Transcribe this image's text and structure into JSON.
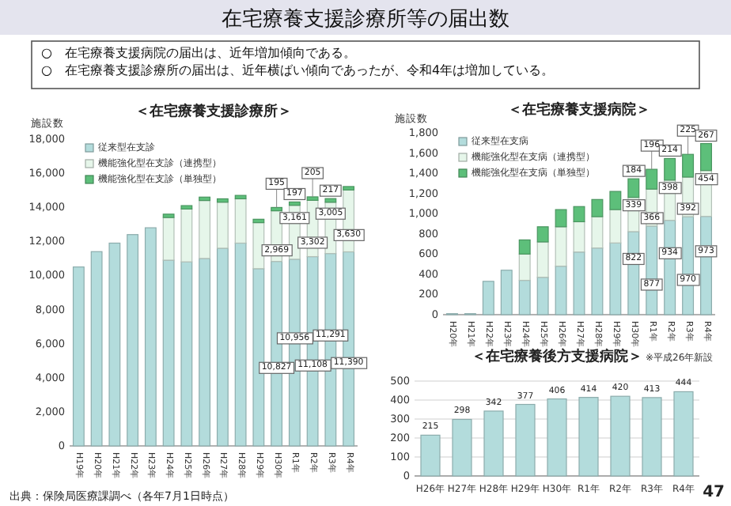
{
  "chart_data": [
    {
      "type": "other",
      "title": "在宅療養支援診療所等の届出数",
      "annotations": [
        "○　在宅療養支援病院の届出は、近年増加傾向である。",
        "○　在宅療養支援診療所の届出は、近年横ばい傾向であったが、令和4年は増加している。"
      ]
    },
    {
      "type": "bar",
      "title": "＜在宅療養支援診療所＞",
      "ylabel": "施設数",
      "stacked": true,
      "legend": "top left",
      "annotations": [
        "出典：保険局医療課調べ（各年7月1日時点）"
      ],
      "categories": [
        "H19年",
        "H20年",
        "H21年",
        "H22年",
        "H23年",
        "H24年",
        "H25年",
        "H26年",
        "H27年",
        "H28年",
        "H29年",
        "H30年",
        "R1年",
        "R2年",
        "R3年",
        "R4年"
      ],
      "ylim": [
        0,
        18000
      ],
      "yticks": [
        0,
        {
          "value": 2000,
          "label": "2,000"
        },
        {
          "value": 4000,
          "label": "4,000"
        },
        {
          "value": 6000,
          "label": "6,000"
        },
        {
          "value": 8000,
          "label": "8,000"
        },
        {
          "value": 10000,
          "label": "10,000"
        },
        {
          "value": 12000,
          "label": "12,000"
        },
        {
          "value": 14000,
          "label": "14,000"
        },
        {
          "value": 16000,
          "label": "16,000"
        },
        {
          "value": 18000,
          "label": "18,000"
        }
      ],
      "series": [
        {
          "name": "従来型在支診",
          "color": "#b3dcdc",
          "values": [
            10500,
            11400,
            11900,
            12400,
            12800,
            10900,
            10800,
            11000,
            11600,
            11900,
            10400,
            10827,
            10956,
            11108,
            11291,
            11390
          ],
          "value_labels": [
            null,
            null,
            null,
            null,
            null,
            null,
            null,
            null,
            null,
            null,
            null,
            "10,827",
            "10,956",
            "11,108",
            "11,291",
            "11,390"
          ]
        },
        {
          "name": "機能強化型在支診（連携型）",
          "color": "#e6f6ea",
          "values": [
            null,
            null,
            null,
            null,
            null,
            2500,
            3100,
            3400,
            2700,
            2600,
            2700,
            2969,
            3161,
            3302,
            3005,
            3630
          ],
          "value_labels": [
            null,
            null,
            null,
            null,
            null,
            null,
            null,
            null,
            null,
            null,
            null,
            "2,969",
            "3,161",
            "3,302",
            "3,005",
            "3,630"
          ]
        },
        {
          "name": "機能強化型在支診（単独型）",
          "color": "#5dbf7a",
          "values": [
            null,
            null,
            null,
            null,
            null,
            200,
            200,
            200,
            200,
            200,
            200,
            195,
            197,
            205,
            217,
            200
          ],
          "value_labels": [
            null,
            null,
            null,
            null,
            null,
            null,
            null,
            null,
            null,
            null,
            null,
            "195",
            "197",
            "205",
            "217",
            null
          ]
        }
      ]
    },
    {
      "type": "bar",
      "title": "＜在宅療養支援病院＞",
      "ylabel": "施設数",
      "stacked": true,
      "legend": "top left",
      "categories": [
        "H20年",
        "H21年",
        "H22年",
        "H23年",
        "H24年",
        "H25年",
        "H26年",
        "H27年",
        "H28年",
        "H29年",
        "H30年",
        "R1年",
        "R2年",
        "R3年",
        "R4年"
      ],
      "ylim": [
        0,
        1800
      ],
      "yticks": [
        0,
        200,
        400,
        600,
        800,
        {
          "value": 1000,
          "label": "1,000"
        },
        {
          "value": 1200,
          "label": "1,200"
        },
        {
          "value": 1400,
          "label": "1,400"
        },
        {
          "value": 1600,
          "label": "1,600"
        },
        {
          "value": 1800,
          "label": "1,800"
        }
      ],
      "series": [
        {
          "name": "従来型在支病",
          "color": "#b3dcdc",
          "values": [
            10,
            10,
            330,
            440,
            340,
            370,
            480,
            620,
            660,
            710,
            822,
            877,
            934,
            970,
            973
          ],
          "value_labels": [
            null,
            null,
            null,
            null,
            null,
            null,
            null,
            null,
            null,
            null,
            "822",
            "877",
            "934",
            "970",
            "973"
          ]
        },
        {
          "name": "機能強化型在支病（連携型）",
          "color": "#e6f6ea",
          "values": [
            null,
            null,
            null,
            null,
            260,
            350,
            390,
            300,
            310,
            330,
            339,
            366,
            398,
            392,
            454
          ],
          "value_labels": [
            null,
            null,
            null,
            null,
            null,
            null,
            null,
            null,
            null,
            null,
            "339",
            "366",
            "398",
            "392",
            "454"
          ]
        },
        {
          "name": "機能強化型在支病（単独型）",
          "color": "#5dbf7a",
          "values": [
            null,
            null,
            null,
            null,
            140,
            150,
            170,
            150,
            170,
            180,
            184,
            196,
            214,
            225,
            267
          ],
          "value_labels": [
            null,
            null,
            null,
            null,
            null,
            null,
            null,
            null,
            null,
            null,
            "184",
            "196",
            "214",
            "225",
            "267"
          ]
        }
      ]
    },
    {
      "type": "bar",
      "title": "＜在宅療養後方支援病院＞",
      "subtitle": "※平成26年新設",
      "grid": "y",
      "data_labels": true,
      "annotations": [
        "47"
      ],
      "categories": [
        "H26年",
        "H27年",
        "H28年",
        "H29年",
        "H30年",
        "R1年",
        "R2年",
        "R3年",
        "R4年"
      ],
      "ylim": [
        0,
        500
      ],
      "yticks": [
        0,
        100,
        200,
        300,
        400,
        500
      ],
      "color": "#b3dcdc",
      "values": [
        215,
        298,
        342,
        377,
        406,
        414,
        420,
        413,
        444
      ]
    }
  ]
}
